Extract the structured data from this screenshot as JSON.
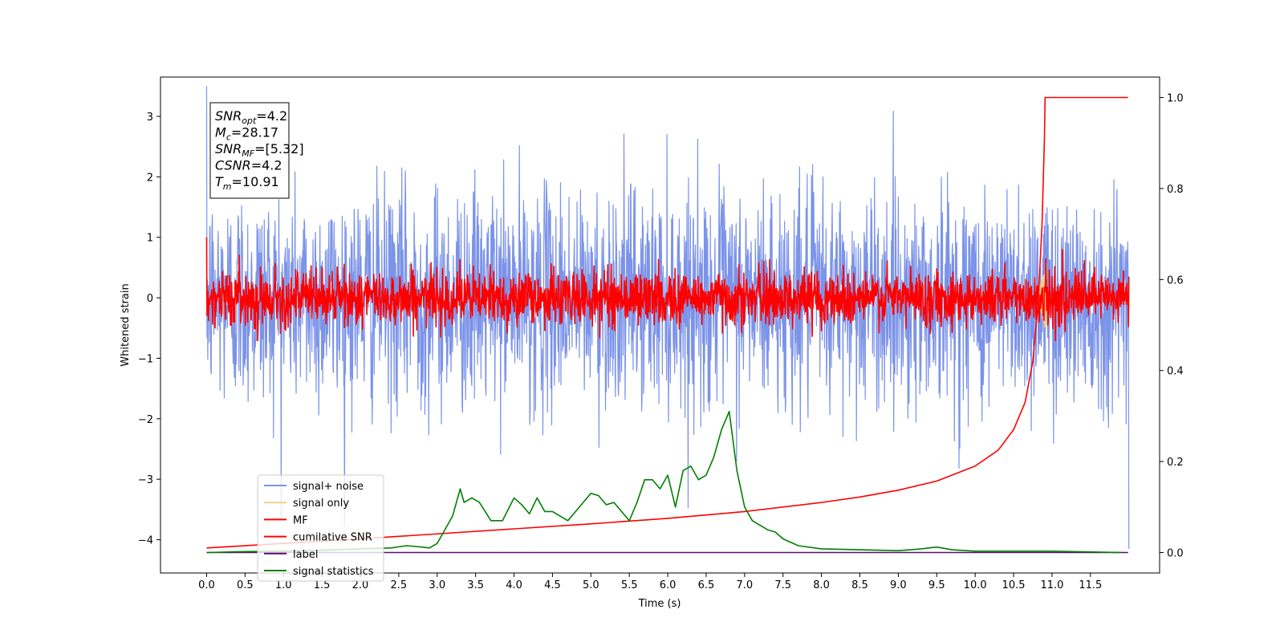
{
  "chart_data": {
    "type": "line",
    "title": "",
    "xlabel": "Time (s)",
    "ylabel": "Whitened strain",
    "xlim": [
      -0.6,
      12.4
    ],
    "ylim": [
      -4.55,
      3.65
    ],
    "y2lim": [
      -0.045,
      1.045
    ],
    "x_ticks": [
      "0.0",
      "0.5",
      "1.0",
      "1.5",
      "2.0",
      "2.5",
      "3.0",
      "3.5",
      "4.0",
      "4.5",
      "5.0",
      "5.5",
      "6.0",
      "6.5",
      "7.0",
      "7.5",
      "8.0",
      "8.5",
      "9.0",
      "9.5",
      "10.0",
      "10.5",
      "11.0",
      "11.5"
    ],
    "y_ticks": [
      "3",
      "2",
      "1",
      "0",
      "−1",
      "−2",
      "−3",
      "−4"
    ],
    "y2_ticks": [
      "1.0",
      "0.8",
      "0.6",
      "0.4",
      "0.2",
      "0.0"
    ],
    "grid": false,
    "legend_position": "lower-left",
    "annotation": [
      {
        "base": "SNR",
        "sub": "opt",
        "value": "=4.2"
      },
      {
        "base": "M",
        "sub": "c",
        "value": "=28.17"
      },
      {
        "base": "SNR",
        "sub": "MF",
        "value": "=[5.32]"
      },
      {
        "base": "CSNR",
        "sub": "",
        "value": "=4.2"
      },
      {
        "base": "T",
        "sub": "m",
        "value": "=10.91"
      }
    ],
    "series": [
      {
        "name": "signal+ noise",
        "color": "#7b93e8",
        "axis": "left",
        "kind": "noise",
        "mean": 0.0,
        "std": 0.9,
        "t_start": 0.0,
        "t_end": 12.0,
        "peak_max": 3.5,
        "peak_min": -4.15
      },
      {
        "name": "signal only",
        "color": "#f5d08a",
        "axis": "left",
        "kind": "chirp",
        "merger_time": 10.91,
        "amplitude": 0.6
      },
      {
        "name": "MF",
        "color": "#ff0000",
        "axis": "left",
        "kind": "noise",
        "mean": 0.0,
        "std": 0.22,
        "t_start": 0.0,
        "t_end": 12.0,
        "peak_max": 1.0
      },
      {
        "name": "cumilative SNR",
        "color": "#ff0000",
        "axis": "right",
        "x": [
          0.0,
          1.0,
          2.0,
          3.0,
          4.0,
          5.0,
          6.0,
          7.0,
          8.0,
          8.5,
          9.0,
          9.5,
          10.0,
          10.3,
          10.5,
          10.65,
          10.75,
          10.82,
          10.87,
          10.9,
          10.91,
          11.0,
          11.5,
          11.99
        ],
        "y": [
          0.01,
          0.02,
          0.03,
          0.041,
          0.052,
          0.063,
          0.075,
          0.09,
          0.11,
          0.122,
          0.137,
          0.157,
          0.19,
          0.225,
          0.27,
          0.33,
          0.42,
          0.55,
          0.72,
          0.9,
          1.0,
          1.0,
          1.0,
          1.0
        ]
      },
      {
        "name": "label",
        "color": "#5b0a73",
        "axis": "right",
        "x": [
          0.0,
          11.99
        ],
        "y": [
          0.0,
          0.0
        ]
      },
      {
        "name": "signal statistics",
        "color": "#008000",
        "axis": "right",
        "x": [
          0.0,
          0.5,
          1.0,
          1.5,
          2.0,
          2.4,
          2.6,
          2.8,
          2.9,
          3.0,
          3.1,
          3.2,
          3.3,
          3.35,
          3.45,
          3.55,
          3.7,
          3.85,
          4.0,
          4.1,
          4.2,
          4.3,
          4.4,
          4.5,
          4.7,
          4.8,
          4.9,
          5.0,
          5.1,
          5.2,
          5.3,
          5.4,
          5.5,
          5.6,
          5.7,
          5.8,
          5.9,
          6.0,
          6.1,
          6.2,
          6.3,
          6.4,
          6.5,
          6.6,
          6.7,
          6.8,
          6.9,
          7.0,
          7.1,
          7.2,
          7.3,
          7.4,
          7.5,
          7.7,
          8.0,
          8.5,
          9.0,
          9.3,
          9.5,
          9.7,
          10.0,
          10.5,
          11.0,
          11.9
        ],
        "y": [
          0.0,
          0.002,
          0.003,
          0.005,
          0.008,
          0.01,
          0.015,
          0.012,
          0.01,
          0.02,
          0.05,
          0.08,
          0.14,
          0.11,
          0.12,
          0.11,
          0.07,
          0.07,
          0.12,
          0.105,
          0.085,
          0.12,
          0.09,
          0.09,
          0.07,
          0.09,
          0.11,
          0.13,
          0.125,
          0.105,
          0.11,
          0.09,
          0.07,
          0.11,
          0.16,
          0.16,
          0.14,
          0.17,
          0.1,
          0.18,
          0.19,
          0.16,
          0.17,
          0.21,
          0.27,
          0.31,
          0.18,
          0.1,
          0.07,
          0.06,
          0.05,
          0.045,
          0.03,
          0.015,
          0.008,
          0.006,
          0.004,
          0.008,
          0.012,
          0.006,
          0.003,
          0.003,
          0.003,
          0.0
        ]
      }
    ]
  }
}
